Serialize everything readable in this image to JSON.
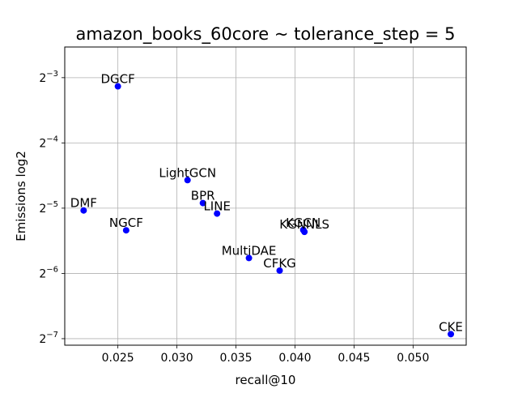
{
  "chart_data": {
    "type": "scatter",
    "title": "amazon_books_60core ~ tolerance_step = 5",
    "xlabel": "recall@10",
    "ylabel": "Emissions log2",
    "y_scale": "log2",
    "xlim": [
      0.0205,
      0.0545
    ],
    "ylim_log2": [
      -7.1,
      -2.53
    ],
    "x_ticks": [
      0.025,
      0.03,
      0.035,
      0.04,
      0.045,
      0.05
    ],
    "x_tick_labels": [
      "0.025",
      "0.030",
      "0.035",
      "0.040",
      "0.045",
      "0.050"
    ],
    "y_ticks_log2": [
      -3,
      -4,
      -5,
      -6,
      -7
    ],
    "y_tick_labels": [
      {
        "base": "2",
        "exp": "−3"
      },
      {
        "base": "2",
        "exp": "−4"
      },
      {
        "base": "2",
        "exp": "−5"
      },
      {
        "base": "2",
        "exp": "−6"
      },
      {
        "base": "2",
        "exp": "−7"
      }
    ],
    "grid": true,
    "marker_color": "#0000ff",
    "points": [
      {
        "label": "DGCF",
        "x": 0.025,
        "y": 0.114
      },
      {
        "label": "LightGCN",
        "x": 0.0309,
        "y": 0.0421
      },
      {
        "label": "BPR",
        "x": 0.0322,
        "y": 0.033
      },
      {
        "label": "LINE",
        "x": 0.0334,
        "y": 0.0295
      },
      {
        "label": "DMF",
        "x": 0.0221,
        "y": 0.0305
      },
      {
        "label": "NGCF",
        "x": 0.0257,
        "y": 0.0247
      },
      {
        "label": "KGCN",
        "x": 0.0407,
        "y": 0.0248
      },
      {
        "label": "KGNNLS",
        "x": 0.0408,
        "y": 0.0243
      },
      {
        "label": "MultiDAE",
        "x": 0.0361,
        "y": 0.0184
      },
      {
        "label": "CFKG",
        "x": 0.0387,
        "y": 0.0161
      },
      {
        "label": "CKE",
        "x": 0.0532,
        "y": 0.0082
      }
    ]
  }
}
